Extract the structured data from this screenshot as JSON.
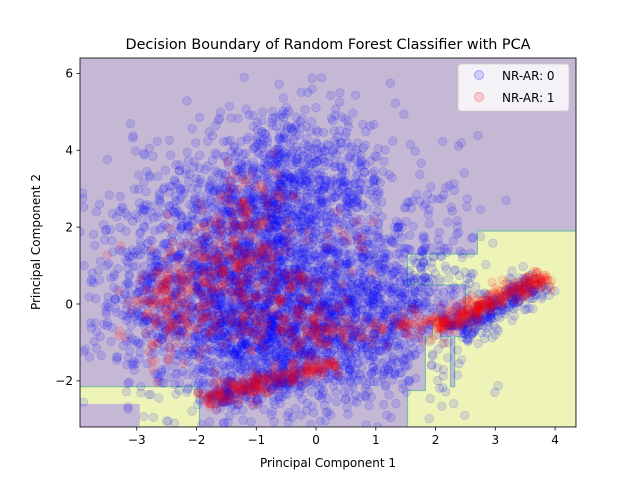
{
  "chart_data": {
    "type": "scatter",
    "title": "Decision Boundary of Random Forest Classifier with PCA",
    "xlabel": "Principal Component 1",
    "ylabel": "Principal Component 2",
    "xlim": [
      -3.95,
      4.35
    ],
    "ylim": [
      -3.2,
      6.4
    ],
    "xticks": [
      -3,
      -2,
      -1,
      0,
      1,
      2,
      3,
      4
    ],
    "yticks": [
      -2,
      0,
      2,
      4,
      6
    ],
    "grid": false,
    "legend_position": "top-right",
    "background_region": {
      "class": 0,
      "color": "#c5b8d4"
    },
    "decision_regions": [
      {
        "class": 1,
        "color": "#eef4b8",
        "polygon": [
          [
            -3.95,
            -2.15
          ],
          [
            -1.95,
            -2.15
          ],
          [
            -1.95,
            -3.2
          ],
          [
            -3.95,
            -3.2
          ]
        ]
      },
      {
        "class": 1,
        "color": "#eef4b8",
        "polygon": [
          [
            1.53,
            1.3
          ],
          [
            2.7,
            1.3
          ],
          [
            2.7,
            1.9
          ],
          [
            4.35,
            1.9
          ],
          [
            4.35,
            -3.2
          ],
          [
            1.53,
            -3.2
          ],
          [
            1.53,
            -2.25
          ],
          [
            1.83,
            -2.25
          ],
          [
            1.83,
            -0.85
          ],
          [
            1.95,
            -0.85
          ],
          [
            1.95,
            -0.45
          ],
          [
            2.08,
            -0.45
          ],
          [
            2.08,
            -0.85
          ],
          [
            2.25,
            -0.85
          ],
          [
            2.25,
            -2.15
          ],
          [
            2.32,
            -2.15
          ],
          [
            2.32,
            -0.85
          ],
          [
            2.5,
            -0.85
          ],
          [
            2.5,
            0.5
          ],
          [
            2.45,
            0.5
          ],
          [
            1.53,
            0.5
          ]
        ]
      },
      {
        "class": 0,
        "color": "#c5b8d4",
        "polygon": [
          [
            -3.95,
            -2.6
          ],
          [
            -2.95,
            -2.6
          ],
          [
            -2.95,
            -3.2
          ],
          [
            -3.95,
            -3.2
          ]
        ]
      }
    ],
    "series": [
      {
        "name": "NR-AR: 0",
        "color": "#0000ff",
        "alpha": 0.12
      },
      {
        "name": "NR-AR: 1",
        "color": "#ff0000",
        "alpha": 0.12
      }
    ],
    "clusters": [
      {
        "series": 0,
        "kind": "gauss",
        "n": 2600,
        "cx": -1.1,
        "cy": 0.5,
        "sx": 1.2,
        "sy": 1.5,
        "rot": 0.15
      },
      {
        "series": 0,
        "kind": "gauss",
        "n": 700,
        "cx": -0.4,
        "cy": 3.2,
        "sx": 0.9,
        "sy": 0.9,
        "rot": 0
      },
      {
        "series": 0,
        "kind": "gauss",
        "n": 500,
        "cx": -0.5,
        "cy": -1.2,
        "sx": 1.0,
        "sy": 0.7,
        "rot": 0
      },
      {
        "series": 0,
        "kind": "gauss",
        "n": 450,
        "cx": 0.9,
        "cy": -0.1,
        "sx": 0.6,
        "sy": 1.0,
        "rot": 0
      },
      {
        "series": 0,
        "kind": "gauss",
        "n": 200,
        "cx": 2.0,
        "cy": 0.6,
        "sx": 0.55,
        "sy": 1.4,
        "rot": 0
      },
      {
        "series": 0,
        "kind": "band",
        "n": 280,
        "x0": 2.3,
        "y0": -0.7,
        "x1": 3.8,
        "y1": 0.6,
        "w": 0.4
      },
      {
        "series": 0,
        "kind": "band",
        "n": 150,
        "x0": -1.8,
        "y0": -2.5,
        "x1": -0.3,
        "y1": -1.9,
        "w": 0.3
      },
      {
        "series": 1,
        "kind": "gauss",
        "n": 170,
        "cx": -2.4,
        "cy": 0.2,
        "sx": 0.45,
        "sy": 0.7,
        "rot": 0
      },
      {
        "series": 1,
        "kind": "gauss",
        "n": 140,
        "cx": -1.5,
        "cy": 0.8,
        "sx": 0.5,
        "sy": 0.9,
        "rot": 0
      },
      {
        "series": 1,
        "kind": "gauss",
        "n": 90,
        "cx": -1.2,
        "cy": 2.3,
        "sx": 0.4,
        "sy": 0.6,
        "rot": 0
      },
      {
        "series": 1,
        "kind": "gauss",
        "n": 110,
        "cx": -0.6,
        "cy": 0.2,
        "sx": 0.45,
        "sy": 0.6,
        "rot": 0
      },
      {
        "series": 1,
        "kind": "band",
        "n": 200,
        "x0": -1.9,
        "y0": -2.5,
        "x1": 0.3,
        "y1": -1.5,
        "w": 0.3
      },
      {
        "series": 1,
        "kind": "gauss",
        "n": 90,
        "cx": -0.2,
        "cy": -0.7,
        "sx": 0.5,
        "sy": 0.35,
        "rot": 0
      },
      {
        "series": 1,
        "kind": "band",
        "n": 240,
        "x0": 2.0,
        "y0": -0.6,
        "x1": 3.85,
        "y1": 0.75,
        "w": 0.25
      },
      {
        "series": 1,
        "kind": "gauss",
        "n": 50,
        "cx": 1.6,
        "cy": -0.5,
        "sx": 0.35,
        "sy": 0.25,
        "rot": 0
      },
      {
        "series": 1,
        "kind": "gauss",
        "n": 25,
        "cx": 0.8,
        "cy": -0.7,
        "sx": 0.3,
        "sy": 0.2,
        "rot": 0
      },
      {
        "series": 1,
        "kind": "gauss",
        "n": 15,
        "cx": 0.5,
        "cy": 1.6,
        "sx": 0.25,
        "sy": 0.4,
        "rot": 0
      }
    ]
  }
}
